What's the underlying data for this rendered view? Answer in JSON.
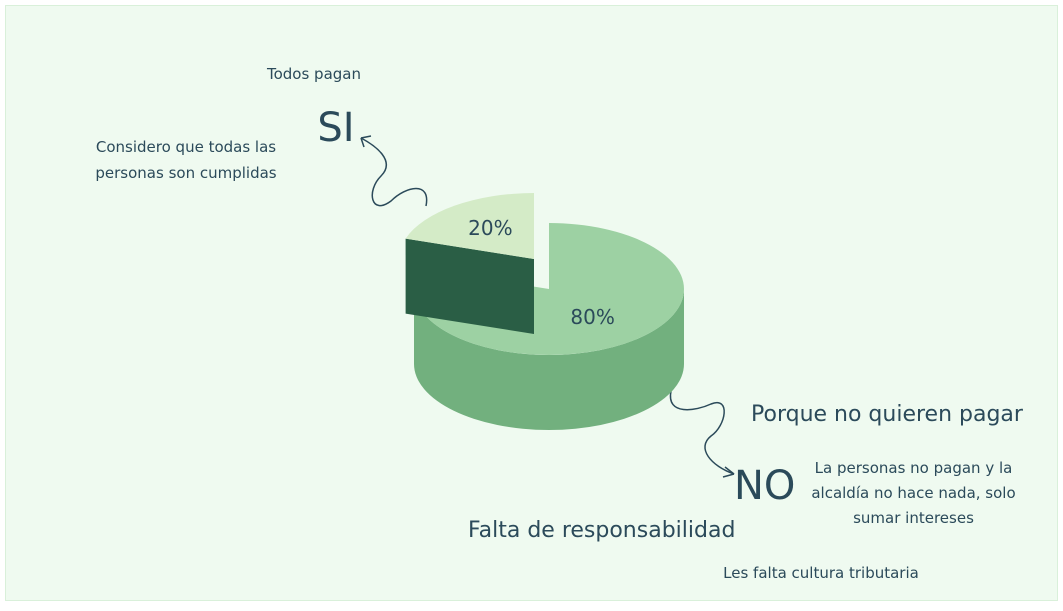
{
  "chart_data": {
    "type": "pie3d",
    "categories": [
      "SI",
      "NO"
    ],
    "values": [
      20,
      80
    ],
    "value_labels": [
      "20%",
      "80%"
    ],
    "colors": [
      "#d4ebc7",
      "#9dd1a3"
    ],
    "annotations": [
      "Todos pagan",
      "Considero que todas las personas son cumplidas",
      "Porque no quieren pagar",
      "La personas no pagan y la alcaldía no hace nada, solo sumar intereses",
      "Falta de responsabilidad",
      "Les falta cultura tributaria"
    ]
  }
}
